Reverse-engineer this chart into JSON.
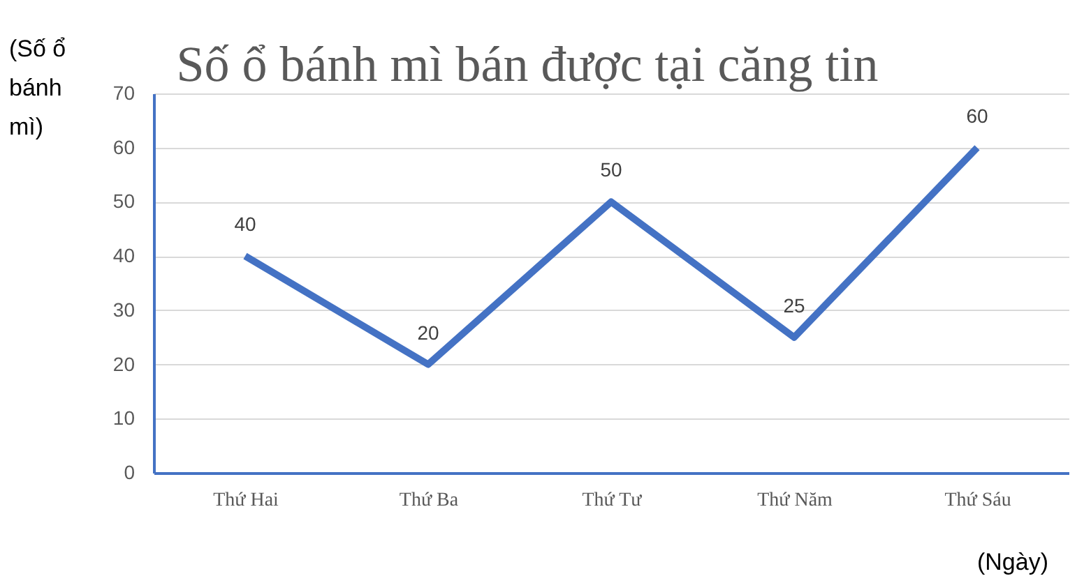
{
  "chart_data": {
    "type": "line",
    "title": "Số ổ bánh mì bán được tại căng tin",
    "ylabel": "(Số ổ bánh mì)",
    "xlabel": "(Ngày)",
    "categories": [
      "Thứ Hai",
      "Thứ Ba",
      "Thứ Tư",
      "Thứ Năm",
      "Thứ Sáu"
    ],
    "series": [
      {
        "color": "#4472c4",
        "values": [
          40,
          20,
          50,
          25,
          60
        ]
      }
    ],
    "ylim": [
      0,
      70
    ],
    "yticks": [
      0,
      10,
      20,
      30,
      40,
      50,
      60,
      70
    ],
    "grid": "y",
    "data_labels": true,
    "marker": "none",
    "line_style": "solid"
  }
}
